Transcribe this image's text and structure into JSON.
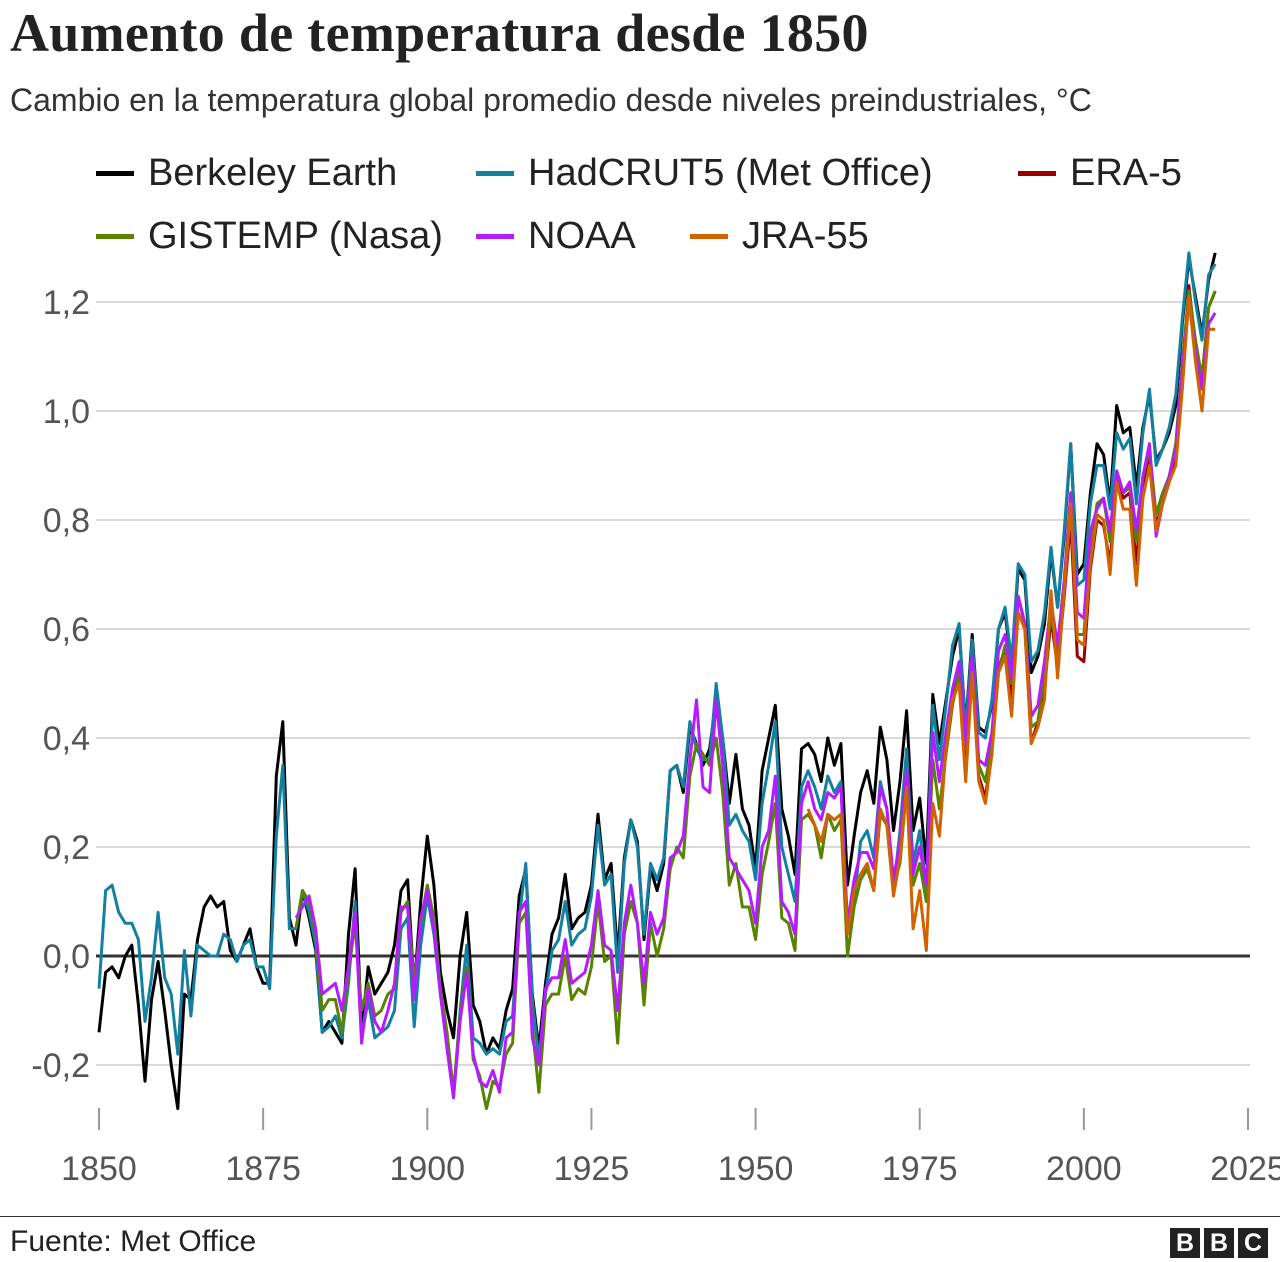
{
  "bbc_logo": [
    "B",
    "B",
    "C"
  ],
  "footer": {
    "source": "Fuente: Met Office"
  },
  "chart_data": {
    "type": "line",
    "title": "Aumento de temperatura desde 1850",
    "subtitle": "Cambio en la temperatura global promedio desde niveles preindustriales, °C",
    "xlabel": "",
    "ylabel": "",
    "xlim": [
      1850,
      2025
    ],
    "ylim": [
      -0.3,
      1.3
    ],
    "x_ticks": [
      1850,
      1875,
      1900,
      1925,
      1950,
      1975,
      2000,
      2025
    ],
    "x_tick_labels": [
      "1850",
      "1875",
      "1900",
      "1925",
      "1950",
      "1975",
      "2000",
      "2025"
    ],
    "y_ticks": [
      -0.2,
      0.0,
      0.2,
      0.4,
      0.6,
      0.8,
      1.0,
      1.2
    ],
    "y_tick_labels": [
      "-0,2",
      "0,0",
      "0,2",
      "0,4",
      "0,6",
      "0,8",
      "1,0",
      "1,2"
    ],
    "grid": true,
    "legend_placement": "top",
    "series": [
      {
        "name": "Berkeley Earth",
        "color": "#000000",
        "start": 1850,
        "values": [
          -0.14,
          -0.03,
          -0.02,
          -0.04,
          0.0,
          0.02,
          -0.09,
          -0.23,
          -0.08,
          -0.01,
          -0.1,
          -0.2,
          -0.28,
          -0.07,
          -0.08,
          0.03,
          0.09,
          0.11,
          0.09,
          0.1,
          0.01,
          -0.01,
          0.02,
          0.05,
          -0.02,
          -0.05,
          -0.05,
          0.33,
          0.43,
          0.07,
          0.02,
          0.12,
          0.07,
          0.01,
          -0.14,
          -0.12,
          -0.14,
          -0.16,
          0.04,
          0.16,
          -0.14,
          -0.02,
          -0.07,
          -0.05,
          -0.03,
          0.02,
          0.12,
          0.14,
          -0.06,
          0.1,
          0.22,
          0.13,
          -0.03,
          -0.1,
          -0.15,
          0.0,
          0.08,
          -0.09,
          -0.12,
          -0.18,
          -0.15,
          -0.17,
          -0.1,
          -0.06,
          0.11,
          0.16,
          -0.07,
          -0.17,
          -0.05,
          0.04,
          0.07,
          0.15,
          0.05,
          0.07,
          0.08,
          0.13,
          0.26,
          0.14,
          0.17,
          0.0,
          0.18,
          0.25,
          0.21,
          0.03,
          0.16,
          0.12,
          0.17,
          0.34,
          0.35,
          0.3,
          0.42,
          0.39,
          0.35,
          0.38,
          0.47,
          0.4,
          0.28,
          0.37,
          0.27,
          0.24,
          0.16,
          0.34,
          0.4,
          0.46,
          0.27,
          0.22,
          0.15,
          0.38,
          0.39,
          0.37,
          0.32,
          0.4,
          0.35,
          0.39,
          0.13,
          0.22,
          0.3,
          0.34,
          0.28,
          0.42,
          0.36,
          0.23,
          0.32,
          0.45,
          0.23,
          0.29,
          0.17,
          0.48,
          0.39,
          0.47,
          0.55,
          0.6,
          0.42,
          0.59,
          0.42,
          0.41,
          0.46,
          0.6,
          0.63,
          0.53,
          0.71,
          0.69,
          0.52,
          0.55,
          0.61,
          0.74,
          0.64,
          0.77,
          0.94,
          0.7,
          0.72,
          0.85,
          0.94,
          0.92,
          0.83,
          1.01,
          0.96,
          0.97,
          0.86,
          0.97,
          1.03,
          0.91,
          0.93,
          0.96,
          1.01,
          1.16,
          1.28,
          1.21,
          1.14,
          1.24,
          1.29
        ]
      },
      {
        "name": "HadCRUT5 (Met Office)",
        "color": "#1380A1",
        "start": 1850,
        "values": [
          -0.06,
          0.12,
          0.13,
          0.08,
          0.06,
          0.06,
          0.03,
          -0.12,
          -0.04,
          0.08,
          -0.04,
          -0.07,
          -0.18,
          0.01,
          -0.11,
          0.02,
          0.01,
          0.0,
          0.0,
          0.04,
          0.03,
          -0.01,
          0.02,
          0.03,
          -0.02,
          -0.02,
          -0.06,
          0.22,
          0.35,
          0.05,
          0.05,
          0.12,
          0.08,
          0.02,
          -0.14,
          -0.13,
          -0.11,
          -0.15,
          -0.05,
          0.1,
          -0.15,
          -0.08,
          -0.15,
          -0.14,
          -0.13,
          -0.1,
          0.05,
          0.07,
          -0.13,
          0.02,
          0.11,
          0.04,
          -0.07,
          -0.16,
          -0.26,
          -0.1,
          0.02,
          -0.15,
          -0.16,
          -0.18,
          -0.17,
          -0.18,
          -0.12,
          -0.11,
          0.07,
          0.17,
          -0.08,
          -0.19,
          -0.07,
          0.01,
          0.03,
          0.1,
          0.02,
          0.04,
          0.05,
          0.11,
          0.24,
          0.13,
          0.15,
          -0.03,
          0.17,
          0.25,
          0.2,
          0.04,
          0.17,
          0.14,
          0.18,
          0.34,
          0.35,
          0.31,
          0.43,
          0.38,
          0.36,
          0.36,
          0.5,
          0.4,
          0.24,
          0.26,
          0.23,
          0.21,
          0.14,
          0.28,
          0.35,
          0.43,
          0.2,
          0.15,
          0.1,
          0.31,
          0.34,
          0.31,
          0.27,
          0.33,
          0.3,
          0.32,
          0.05,
          0.1,
          0.21,
          0.23,
          0.18,
          0.32,
          0.27,
          0.12,
          0.23,
          0.38,
          0.17,
          0.23,
          0.12,
          0.46,
          0.36,
          0.46,
          0.57,
          0.61,
          0.41,
          0.58,
          0.41,
          0.4,
          0.47,
          0.6,
          0.64,
          0.54,
          0.72,
          0.7,
          0.54,
          0.56,
          0.63,
          0.75,
          0.64,
          0.78,
          0.94,
          0.68,
          0.69,
          0.83,
          0.9,
          0.9,
          0.82,
          0.96,
          0.93,
          0.95,
          0.83,
          0.96,
          1.04,
          0.9,
          0.93,
          0.97,
          1.03,
          1.17,
          1.29,
          1.2,
          1.13,
          1.25,
          1.27
        ]
      },
      {
        "name": "ERA-5",
        "color": "#990000",
        "start": 1979,
        "values": [
          0.4,
          0.48,
          0.53,
          0.36,
          0.55,
          0.33,
          0.29,
          0.38,
          0.53,
          0.56,
          0.47,
          0.66,
          0.61,
          0.39,
          0.43,
          0.49,
          0.62,
          0.53,
          0.66,
          0.8,
          0.55,
          0.54,
          0.71,
          0.8,
          0.79,
          0.72,
          0.88,
          0.84,
          0.85,
          0.72,
          0.86,
          0.92,
          0.79,
          0.83,
          0.87,
          0.92,
          1.05,
          1.23,
          1.12,
          1.06,
          1.19,
          1.22
        ]
      },
      {
        "name": "GISTEMP (Nasa)",
        "color": "#588300",
        "start": 1880,
        "values": [
          0.05,
          0.12,
          0.1,
          0.04,
          -0.1,
          -0.08,
          -0.08,
          -0.14,
          -0.03,
          0.06,
          -0.1,
          -0.05,
          -0.11,
          -0.1,
          -0.07,
          -0.06,
          0.08,
          0.1,
          -0.05,
          0.06,
          0.13,
          0.07,
          -0.06,
          -0.14,
          -0.25,
          -0.11,
          -0.02,
          -0.19,
          -0.22,
          -0.28,
          -0.23,
          -0.24,
          -0.18,
          -0.16,
          0.06,
          0.08,
          -0.13,
          -0.25,
          -0.09,
          -0.07,
          -0.07,
          0.0,
          -0.08,
          -0.06,
          -0.07,
          -0.02,
          0.1,
          -0.01,
          0.0,
          -0.16,
          0.04,
          0.1,
          0.06,
          -0.09,
          0.06,
          0.0,
          0.05,
          0.16,
          0.2,
          0.18,
          0.33,
          0.39,
          0.37,
          0.35,
          0.4,
          0.3,
          0.13,
          0.17,
          0.09,
          0.09,
          0.03,
          0.15,
          0.21,
          0.28,
          0.07,
          0.06,
          0.01,
          0.25,
          0.26,
          0.24,
          0.18,
          0.26,
          0.23,
          0.25,
          0.0,
          0.09,
          0.14,
          0.16,
          0.12,
          0.26,
          0.24,
          0.13,
          0.17,
          0.31,
          0.13,
          0.17,
          0.1,
          0.36,
          0.27,
          0.37,
          0.46,
          0.52,
          0.38,
          0.53,
          0.35,
          0.32,
          0.39,
          0.52,
          0.57,
          0.5,
          0.63,
          0.6,
          0.42,
          0.43,
          0.52,
          0.63,
          0.55,
          0.68,
          0.83,
          0.59,
          0.59,
          0.74,
          0.83,
          0.84,
          0.76,
          0.89,
          0.85,
          0.86,
          0.76,
          0.88,
          0.93,
          0.81,
          0.85,
          0.88,
          0.94,
          1.09,
          1.22,
          1.13,
          1.06,
          1.19,
          1.22
        ]
      },
      {
        "name": "NOAA",
        "color": "#B41CFF",
        "start": 1880,
        "values": [
          0.07,
          0.09,
          0.11,
          0.05,
          -0.07,
          -0.06,
          -0.05,
          -0.1,
          -0.02,
          0.08,
          -0.16,
          -0.06,
          -0.12,
          -0.14,
          -0.1,
          -0.05,
          0.09,
          0.09,
          -0.08,
          0.07,
          0.12,
          0.05,
          -0.07,
          -0.17,
          -0.26,
          -0.12,
          -0.03,
          -0.18,
          -0.23,
          -0.24,
          -0.21,
          -0.25,
          -0.15,
          -0.14,
          0.08,
          0.1,
          -0.15,
          -0.2,
          -0.06,
          -0.04,
          -0.04,
          0.03,
          -0.05,
          -0.04,
          -0.03,
          0.02,
          0.12,
          0.02,
          0.01,
          -0.1,
          0.06,
          0.13,
          0.06,
          -0.05,
          0.08,
          0.04,
          0.07,
          0.18,
          0.19,
          0.22,
          0.36,
          0.47,
          0.31,
          0.3,
          0.47,
          0.35,
          0.18,
          0.16,
          0.14,
          0.12,
          0.06,
          0.2,
          0.23,
          0.33,
          0.1,
          0.08,
          0.04,
          0.28,
          0.32,
          0.27,
          0.25,
          0.3,
          0.29,
          0.31,
          0.06,
          0.14,
          0.19,
          0.19,
          0.16,
          0.31,
          0.27,
          0.14,
          0.21,
          0.34,
          0.15,
          0.2,
          0.13,
          0.41,
          0.32,
          0.41,
          0.49,
          0.54,
          0.39,
          0.55,
          0.36,
          0.35,
          0.41,
          0.56,
          0.59,
          0.51,
          0.66,
          0.61,
          0.44,
          0.46,
          0.54,
          0.65,
          0.57,
          0.69,
          0.85,
          0.63,
          0.62,
          0.78,
          0.82,
          0.84,
          0.78,
          0.89,
          0.85,
          0.87,
          0.78,
          0.88,
          0.94,
          0.77,
          0.83,
          0.88,
          0.93,
          1.08,
          1.2,
          1.11,
          1.04,
          1.16,
          1.18
        ]
      },
      {
        "name": "JRA-55",
        "color": "#D06200",
        "start": 1958,
        "values": [
          0.27,
          0.24,
          0.21,
          0.26,
          0.25,
          0.26,
          0.04,
          0.12,
          0.15,
          0.17,
          0.12,
          0.27,
          0.24,
          0.11,
          0.18,
          0.31,
          0.05,
          0.12,
          0.01,
          0.28,
          0.22,
          0.38,
          0.47,
          0.5,
          0.32,
          0.52,
          0.32,
          0.28,
          0.37,
          0.52,
          0.55,
          0.44,
          0.63,
          0.6,
          0.39,
          0.42,
          0.47,
          0.67,
          0.51,
          0.67,
          0.83,
          0.58,
          0.57,
          0.72,
          0.81,
          0.8,
          0.7,
          0.87,
          0.82,
          0.82,
          0.68,
          0.84,
          0.9,
          0.78,
          0.83,
          0.87,
          0.9,
          1.04,
          1.21,
          1.09,
          1.0,
          1.15,
          1.15
        ]
      }
    ]
  }
}
